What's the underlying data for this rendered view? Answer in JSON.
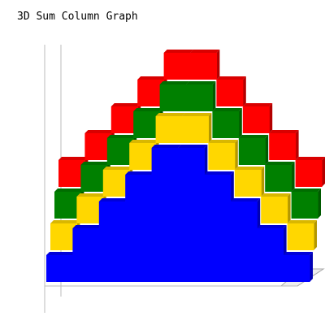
{
  "chart_data": {
    "type": "bar",
    "variant": "3d-stacked-columns-depth-offset",
    "title": "3D Sum Column Graph",
    "xlabel": "",
    "ylabel": "",
    "categories": [
      "",
      "",
      "",
      "",
      "",
      "",
      "",
      "",
      "",
      ""
    ],
    "series": [
      {
        "color": "#0000ff",
        "values": [
          1,
          2,
          3,
          4,
          5,
          5,
          4,
          3,
          2,
          1
        ]
      },
      {
        "color": "#ffd700",
        "values": [
          1,
          1,
          1,
          1,
          1,
          1,
          1,
          1,
          1,
          1
        ]
      },
      {
        "color": "#008000",
        "values": [
          1,
          1,
          1,
          1,
          1,
          1,
          1,
          1,
          1,
          1
        ]
      },
      {
        "color": "#ff0000",
        "values": [
          1,
          1,
          1,
          1,
          1,
          1,
          1,
          1,
          1,
          1
        ]
      }
    ],
    "ylim": [
      0,
      9
    ],
    "grid": false,
    "legend": "none"
  },
  "colors": {
    "floor": "#eeeeee",
    "axis": "#bbbbbb"
  }
}
